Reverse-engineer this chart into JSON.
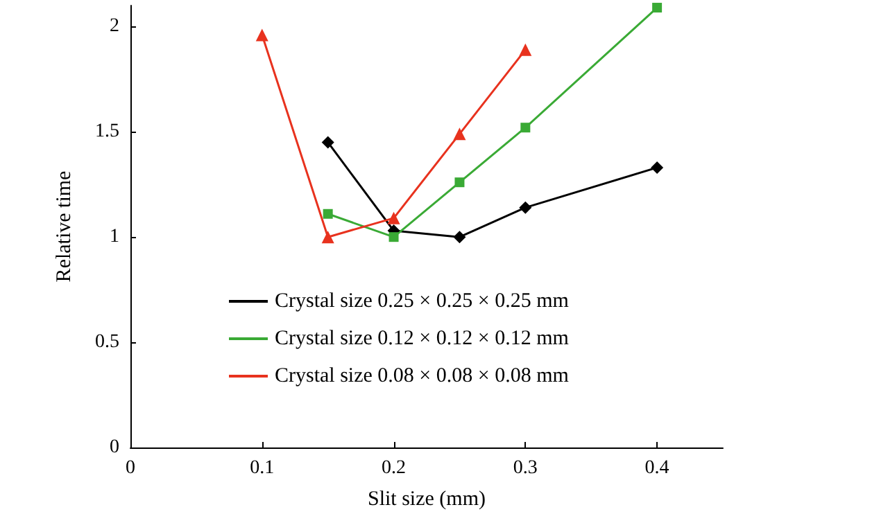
{
  "chart_data": {
    "type": "line",
    "xlabel": "Slit size (mm)",
    "ylabel": "Relative time",
    "xlim": [
      0,
      0.45
    ],
    "xticks": [
      0,
      0.1,
      0.2,
      0.3,
      0.4
    ],
    "ylim": [
      0,
      2.1
    ],
    "yticks": [
      0,
      0.5,
      1,
      1.5,
      2
    ],
    "grid": false,
    "legend": "bottom",
    "line_style": "solid",
    "series": [
      {
        "name": "Crystal size 0.25 × 0.25 × 0.25 mm",
        "color": "#000000",
        "marker": "diamond",
        "x": [
          0.15,
          0.2,
          0.25,
          0.3,
          0.4
        ],
        "values": [
          1.45,
          1.03,
          1.0,
          1.14,
          1.33
        ]
      },
      {
        "name": "Crystal size 0.12 × 0.12 × 0.12 mm",
        "color": "#3aaa35",
        "marker": "square",
        "x": [
          0.15,
          0.2,
          0.25,
          0.3,
          0.4
        ],
        "values": [
          1.11,
          1.0,
          1.26,
          1.52,
          2.09
        ]
      },
      {
        "name": "Crystal size 0.08 × 0.08 × 0.08 mm",
        "color": "#e8321e",
        "marker": "triangle",
        "x": [
          0.1,
          0.15,
          0.2,
          0.25,
          0.3
        ],
        "values": [
          1.96,
          1.0,
          1.09,
          1.49,
          1.89
        ]
      }
    ]
  }
}
